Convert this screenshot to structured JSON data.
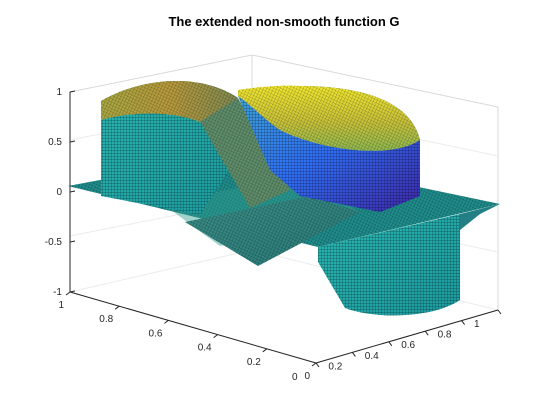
{
  "chart_data": {
    "type": "surface",
    "title": "The extended non-smooth function G",
    "xlabel": "",
    "ylabel": "",
    "zlabel": "",
    "xlim": [
      0,
      1
    ],
    "ylim": [
      0,
      1
    ],
    "zlim": [
      -1,
      1
    ],
    "x_ticks": [
      "0",
      "0.2",
      "0.4",
      "0.6",
      "0.8",
      "1"
    ],
    "y_ticks": [
      "0",
      "0.2",
      "0.4",
      "0.6",
      "0.8",
      "1"
    ],
    "z_ticks": [
      "-1",
      "-0.5",
      "0",
      "0.5",
      "1"
    ],
    "colormap": [
      "#3e26a8",
      "#2f6ef4",
      "#13b1d4",
      "#5bc863",
      "#d1bf33",
      "#f9fb0e"
    ],
    "grid": true,
    "mesh_edges": true,
    "surfaces": [
      {
        "region": "flat plane",
        "x": [
          0,
          1
        ],
        "y": [
          0,
          1
        ],
        "z": 0
      },
      {
        "region": "upper dome",
        "x": [
          0.62,
          1.0
        ],
        "y": [
          0.28,
          0.72
        ],
        "z_range": [
          0.3,
          0.95
        ]
      },
      {
        "region": "left bump",
        "x": [
          0.0,
          0.32
        ],
        "y": [
          0.62,
          0.82
        ],
        "z_range": [
          0.0,
          0.8
        ]
      },
      {
        "region": "lower trough",
        "x": [
          0.5,
          0.92
        ],
        "y": [
          0.0,
          0.28
        ],
        "z_range": [
          -0.95,
          0.0
        ]
      }
    ]
  }
}
